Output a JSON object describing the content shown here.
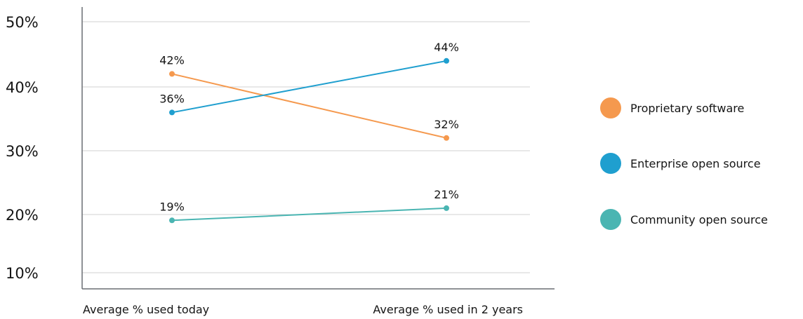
{
  "chart_data": {
    "type": "line",
    "title": "",
    "xlabel": "",
    "ylabel": "",
    "categories": [
      "Average % used today",
      "Average % used in 2 years"
    ],
    "y_ticks": [
      "50%",
      "40%",
      "30%",
      "20%",
      "10%"
    ],
    "ylim": [
      10,
      50
    ],
    "grid": true,
    "legend_position": "right",
    "series": [
      {
        "name": "Proprietary software",
        "color": "#F5994E",
        "values": [
          42,
          32
        ],
        "labels": [
          "42%",
          "32%"
        ]
      },
      {
        "name": "Enterprise open source",
        "color": "#1F9FCF",
        "values": [
          36,
          44
        ],
        "labels": [
          "36%",
          "44%"
        ]
      },
      {
        "name": "Community open source",
        "color": "#4AB5B2",
        "values": [
          19,
          21
        ],
        "labels": [
          "19%",
          "21%"
        ]
      }
    ]
  }
}
